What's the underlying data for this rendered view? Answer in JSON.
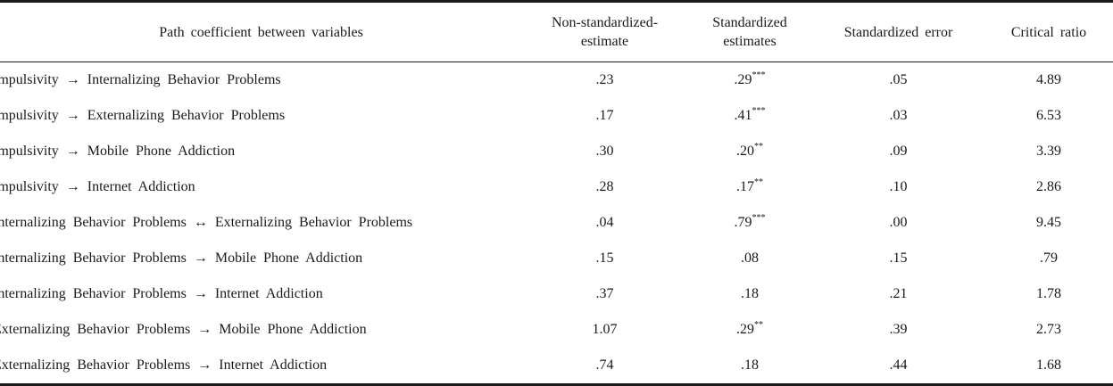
{
  "table": {
    "headers": [
      {
        "lines": [
          "Path  coefficient  between  variables"
        ]
      },
      {
        "lines": [
          "Non-standardized-",
          "estimate"
        ]
      },
      {
        "lines": [
          "Standardized",
          "estimates"
        ]
      },
      {
        "lines": [
          "Standardized  error"
        ]
      },
      {
        "lines": [
          "Critical  ratio"
        ]
      }
    ],
    "rows": [
      {
        "path": "Impulsivity → Internalizing Behavior Problems",
        "nonstd": ".23",
        "std": ".29",
        "sig": "***",
        "se": ".05",
        "cr": "4.89"
      },
      {
        "path": "Impulsivity → Externalizing Behavior Problems",
        "nonstd": ".17",
        "std": ".41",
        "sig": "***",
        "se": ".03",
        "cr": "6.53"
      },
      {
        "path": "Impulsivity → Mobile Phone Addiction",
        "nonstd": ".30",
        "std": ".20",
        "sig": "**",
        "se": ".09",
        "cr": "3.39"
      },
      {
        "path": "Impulsivity → Internet Addiction",
        "nonstd": ".28",
        "std": ".17",
        "sig": "**",
        "se": ".10",
        "cr": "2.86"
      },
      {
        "path": "Internalizing Behavior Problems ↔ Externalizing Behavior Problems",
        "nonstd": ".04",
        "std": ".79",
        "sig": "***",
        "se": ".00",
        "cr": "9.45"
      },
      {
        "path": "Internalizing Behavior Problems → Mobile Phone Addiction",
        "nonstd": ".15",
        "std": ".08",
        "sig": "",
        "se": ".15",
        "cr": ".79"
      },
      {
        "path": "Internalizing Behavior Problems → Internet Addiction",
        "nonstd": ".37",
        "std": ".18",
        "sig": "",
        "se": ".21",
        "cr": "1.78"
      },
      {
        "path": "Externalizing Behavior Problems → Mobile Phone Addiction",
        "nonstd": "1.07",
        "std": ".29",
        "sig": "**",
        "se": ".39",
        "cr": "2.73"
      },
      {
        "path": "Externalizing Behavior Problems → Internet Addiction",
        "nonstd": ".74",
        "std": ".18",
        "sig": "",
        "se": ".44",
        "cr": "1.68"
      }
    ]
  }
}
